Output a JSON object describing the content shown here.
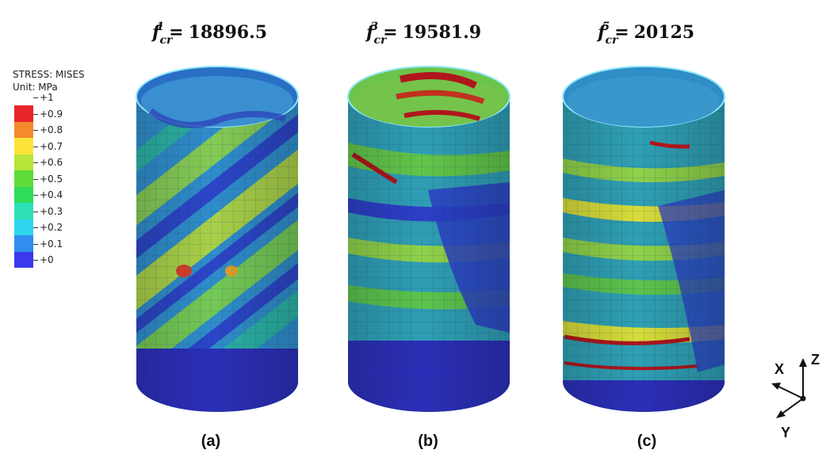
{
  "legend": {
    "title": "STRESS: MISES",
    "unit": "Unit: MPa",
    "levels": [
      {
        "label": "+1",
        "color": "#e8262a"
      },
      {
        "label": "+0.9",
        "color": "#f48a2a"
      },
      {
        "label": "+0.8",
        "color": "#fce43a"
      },
      {
        "label": "+0.7",
        "color": "#b7e53a"
      },
      {
        "label": "+0.6",
        "color": "#5fdc3a"
      },
      {
        "label": "+0.5",
        "color": "#2fdc5a"
      },
      {
        "label": "+0.4",
        "color": "#2ee0b8"
      },
      {
        "label": "+0.3",
        "color": "#2fd6ee"
      },
      {
        "label": "+0.2",
        "color": "#2f8ef0"
      },
      {
        "label": "+0.1",
        "color": "#3a3aec"
      },
      {
        "label": "+0",
        "color": ""
      }
    ]
  },
  "panels": [
    {
      "symbol": "f",
      "sub": "cr",
      "sup": "1",
      "equals": "=",
      "value": "18896.5",
      "caption": "(a)"
    },
    {
      "symbol": "f",
      "sub": "cr",
      "sup": "3",
      "equals": "=",
      "value": "19581.9",
      "caption": "(b)"
    },
    {
      "symbol": "f",
      "sub": "cr",
      "sup": "5",
      "equals": "=",
      "value": "20125",
      "caption": "(c)"
    }
  ],
  "axes": {
    "x": "X",
    "y": "Y",
    "z": "Z"
  },
  "colors": {
    "deep_blue": "#2b2fb8",
    "blue": "#3553d8",
    "teal": "#2a9fb0",
    "green": "#3ccc54",
    "yellow": "#d6dc3a",
    "red": "#b0161c"
  }
}
